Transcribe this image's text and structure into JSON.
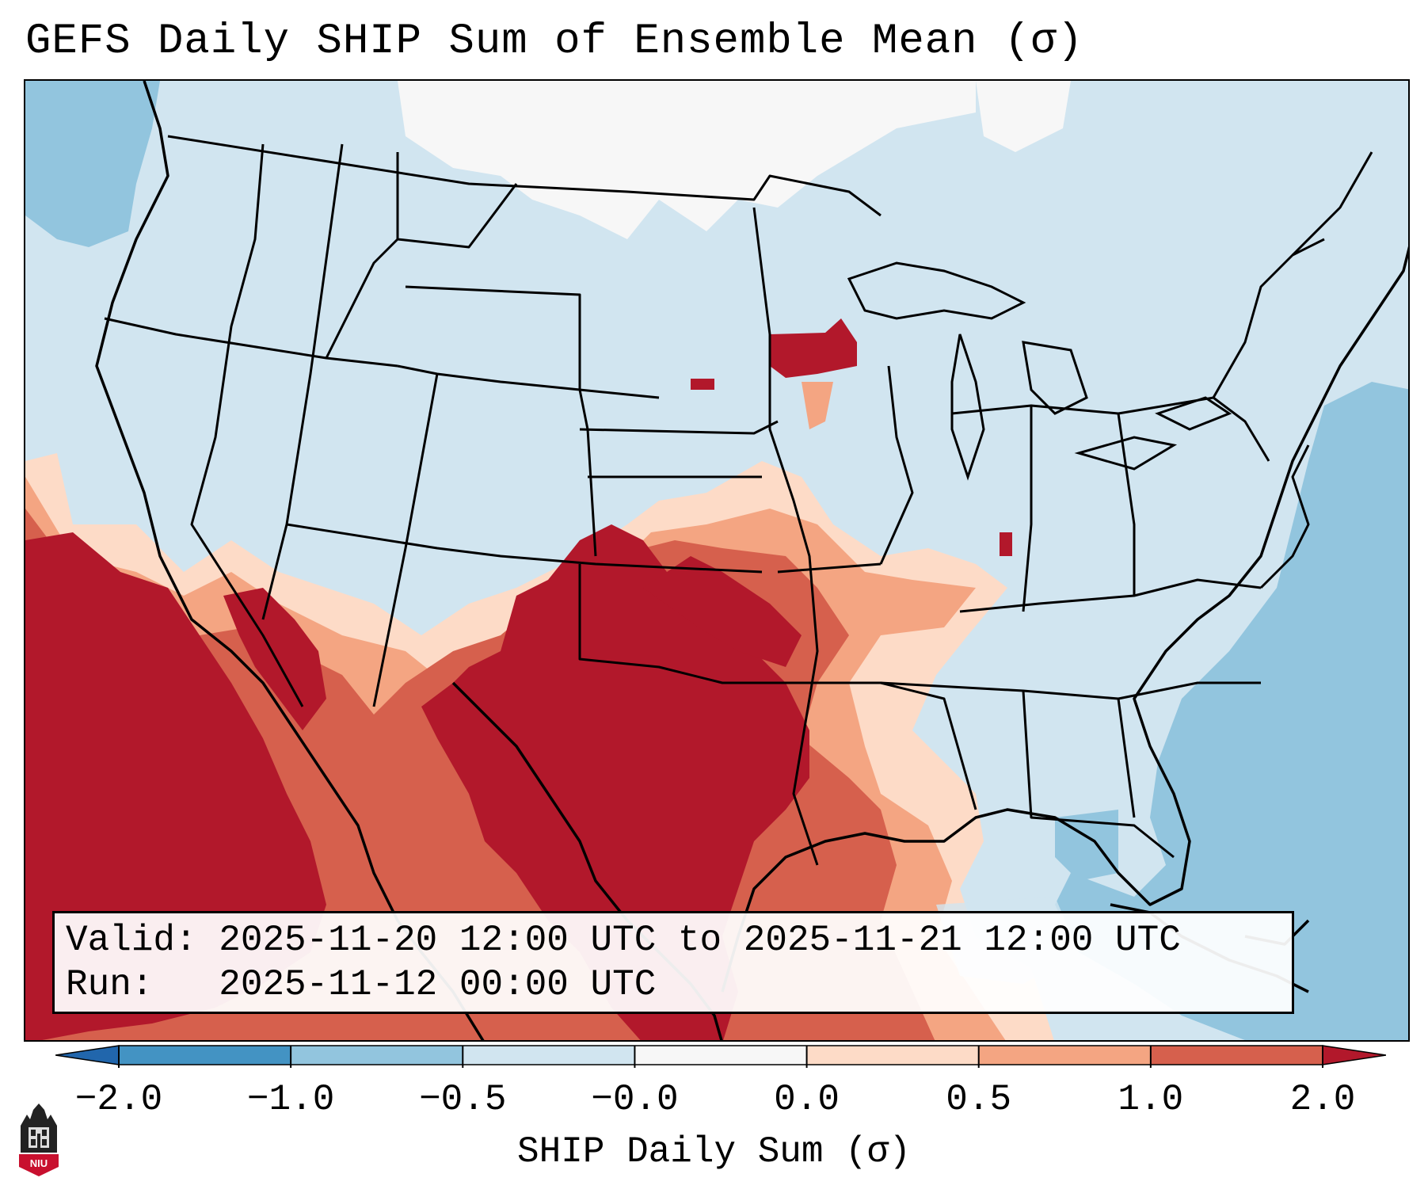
{
  "title": "GEFS Daily SHIP Sum of Ensemble Mean (σ)",
  "info": {
    "valid_line": "Valid: 2025-11-20 12:00 UTC to 2025-11-21 12:00 UTC",
    "run_line": "Run:   2025-11-12 00:00 UTC"
  },
  "colorbar": {
    "label": "SHIP Daily Sum (σ)",
    "ticks": [
      "−2.0",
      "−1.0",
      "−0.5",
      "−0.0",
      "0.0",
      "0.5",
      "1.0",
      "2.0"
    ],
    "colors": [
      "#4393c3",
      "#92c5de",
      "#d1e5f0",
      "#f7f7f7",
      "#fddbc7",
      "#f4a582",
      "#d6604d"
    ],
    "under_color": "#2166ac",
    "over_color": "#b2182b"
  },
  "logo": {
    "text": "NIU",
    "icon": "niu-building-icon"
  },
  "map": {
    "region": "Continental United States",
    "anomaly_areas": [
      {
        "name": "southern-plains-texas",
        "category": "over 2.0"
      },
      {
        "name": "northwest-mexico-baja",
        "category": "over 2.0"
      },
      {
        "name": "western-gulf-coast",
        "category": "1.0 to 2.0"
      },
      {
        "name": "lower-mississippi-valley",
        "category": "0.5 to 1.0"
      },
      {
        "name": "southern-minnesota",
        "category": "over 2.0"
      },
      {
        "name": "atlantic-ocean",
        "category": "-1.0 to -0.5"
      }
    ]
  }
}
